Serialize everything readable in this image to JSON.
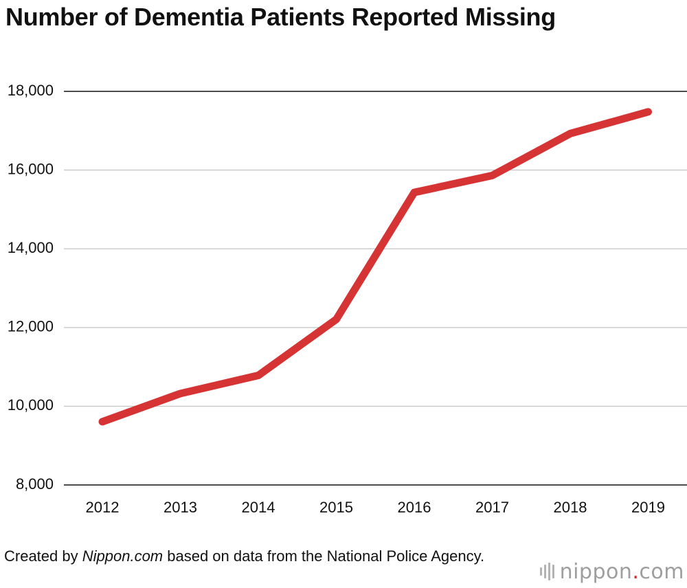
{
  "title": "Number of Dementia Patients Reported Missing",
  "footer": {
    "prefix": "Created by ",
    "source_name": "Nippon.com",
    "suffix": " based on data from the National Police Agency."
  },
  "brand": {
    "name_main": "nippon",
    "name_dot": ".",
    "name_tld": "com",
    "dot_color": "#d8232a"
  },
  "chart_data": {
    "type": "line",
    "title": "Number of Dementia Patients Reported Missing",
    "xlabel": "",
    "ylabel": "",
    "categories": [
      "2012",
      "2013",
      "2014",
      "2015",
      "2016",
      "2017",
      "2018",
      "2019"
    ],
    "series": [
      {
        "values": [
          9607,
          10322,
          10783,
          12208,
          15432,
          15863,
          16927,
          17479
        ],
        "color": "#d63335"
      }
    ],
    "ylim": [
      8000,
      18000
    ],
    "yticks": [
      8000,
      10000,
      12000,
      14000,
      16000,
      18000
    ],
    "ytick_labels": [
      "8,000",
      "10,000",
      "12,000",
      "14,000",
      "16,000",
      "18,000"
    ],
    "grid": true,
    "grid_color": "#c8c8c8",
    "axis_color": "#111111"
  }
}
